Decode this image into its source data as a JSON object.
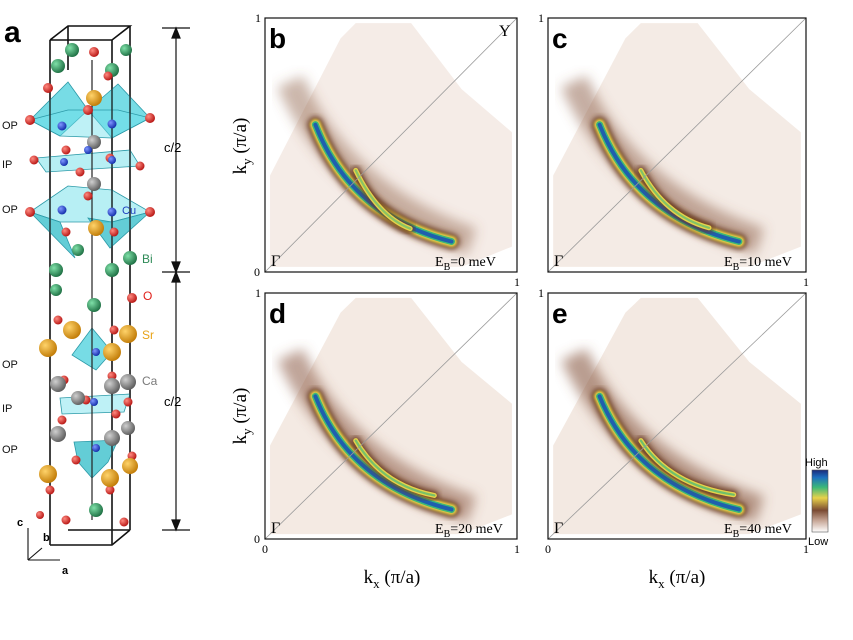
{
  "figure": {
    "panel_a": {
      "label": "a",
      "layer_labels": [
        "OP",
        "IP",
        "OP",
        "OP",
        "IP",
        "OP"
      ],
      "half_cell_label_top": "c/2",
      "half_cell_label_bottom": "c/2",
      "legend": [
        {
          "label": "Bi",
          "color": "#2e8b57"
        },
        {
          "label": "O",
          "color": "#e0201b"
        },
        {
          "label": "Sr",
          "color": "#e8a317"
        },
        {
          "label": "Ca",
          "color": "#8c8c8c"
        },
        {
          "label": "Cu",
          "color": "#1f3fbf"
        }
      ],
      "axes": {
        "c": "c",
        "b": "b",
        "a": "a"
      }
    },
    "maps": [
      {
        "label": "b",
        "energy_prefix": "E",
        "energy_sub": "B",
        "energy_value": "=0 meV",
        "corner_label": "Y",
        "gamma": "Γ",
        "intensity": 0.55
      },
      {
        "label": "c",
        "energy_prefix": "E",
        "energy_sub": "B",
        "energy_value": "=10 meV",
        "gamma": "Γ",
        "intensity": 0.7
      },
      {
        "label": "d",
        "energy_prefix": "E",
        "energy_sub": "B",
        "energy_value": "=20 meV",
        "gamma": "Γ",
        "intensity": 0.85
      },
      {
        "label": "e",
        "energy_prefix": "E",
        "energy_sub": "B",
        "energy_value": "=40 meV",
        "gamma": "Γ",
        "intensity": 1.0
      }
    ],
    "axis": {
      "ylabel_main": "k",
      "ylabel_sub": "y",
      "ylabel_unit": " (π/a)",
      "xlabel_main": "k",
      "xlabel_sub": "x",
      "xlabel_unit": " (π/a)",
      "tick_zero": "0",
      "tick_one": "1"
    },
    "colorbar": {
      "high": "High",
      "low": "Low"
    }
  }
}
